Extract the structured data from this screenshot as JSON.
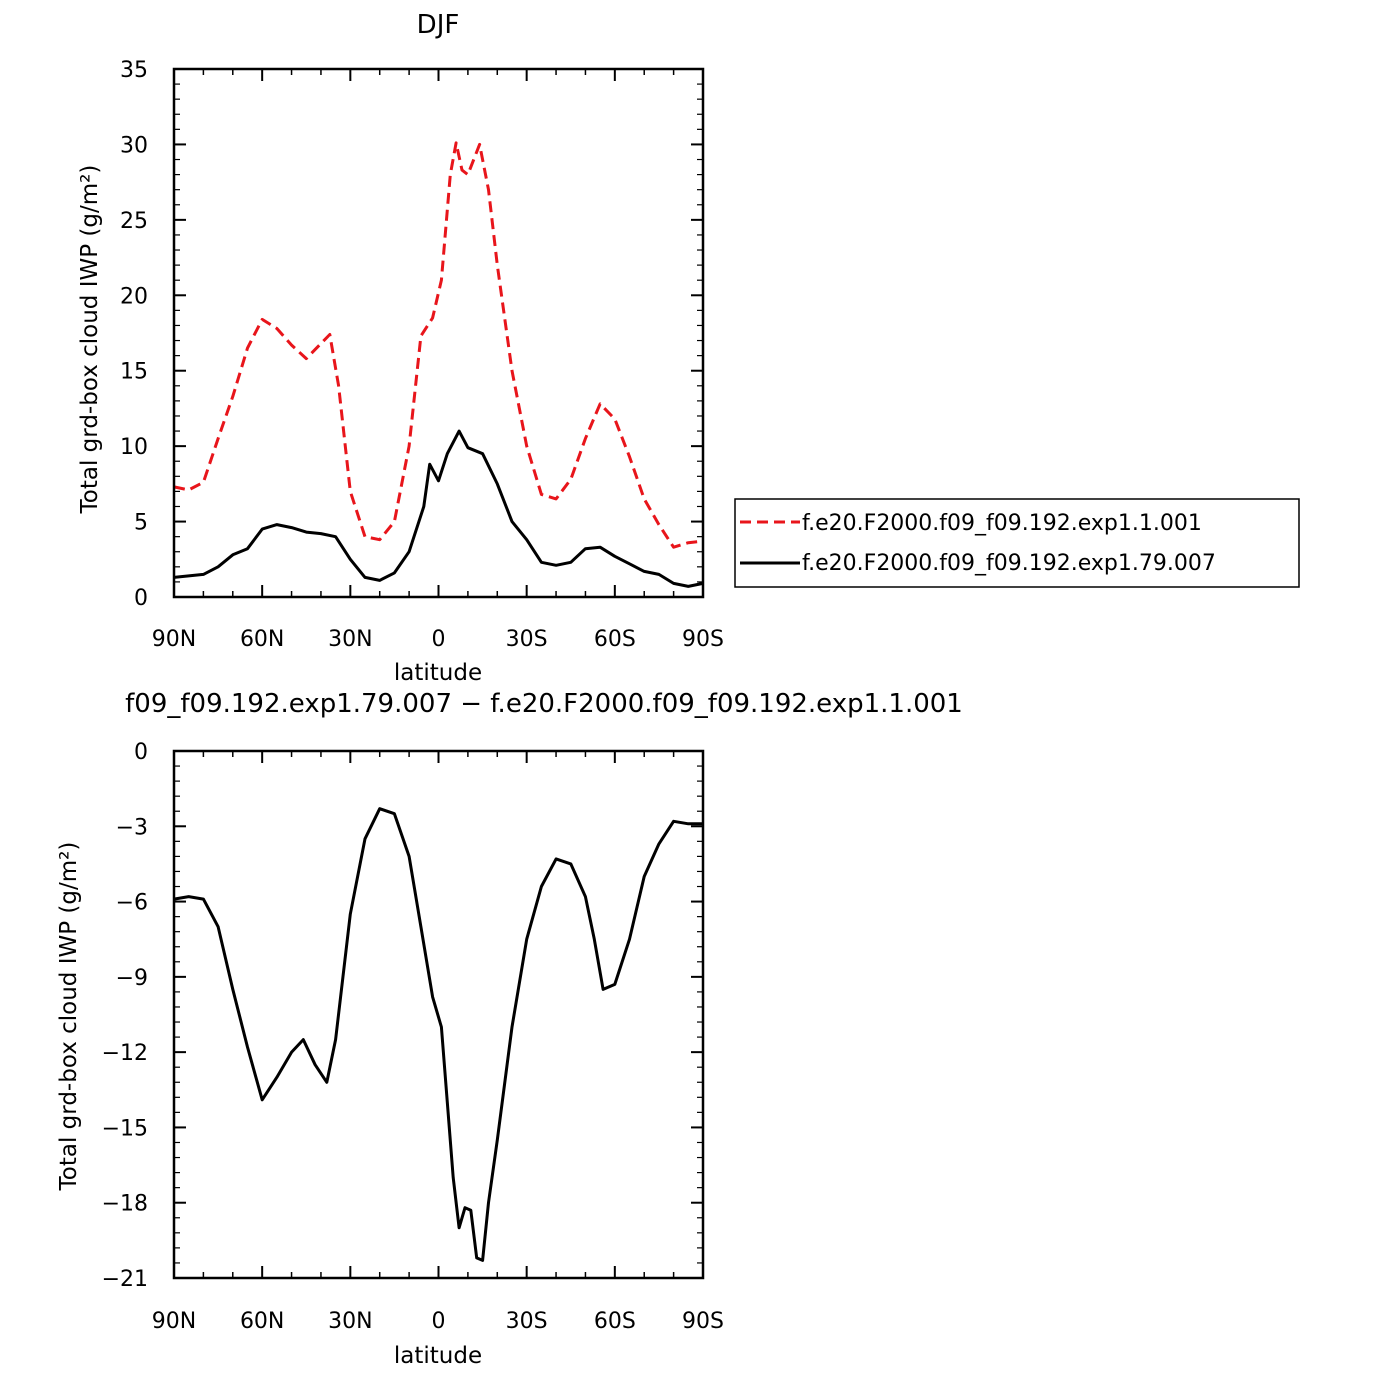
{
  "chart_data": [
    {
      "type": "line",
      "title": "DJF",
      "xlabel": "latitude",
      "ylabel": "Total grd-box cloud IWP (g/m²)",
      "xlim": [
        -90,
        90
      ],
      "ylim": [
        0,
        35
      ],
      "x_ticks": [
        {
          "value": -90,
          "label": "90N"
        },
        {
          "value": -60,
          "label": "60N"
        },
        {
          "value": -30,
          "label": "30N"
        },
        {
          "value": 0,
          "label": "0"
        },
        {
          "value": 30,
          "label": "30S"
        },
        {
          "value": 60,
          "label": "60S"
        },
        {
          "value": 90,
          "label": "90S"
        }
      ],
      "y_ticks": [
        0,
        5,
        10,
        15,
        20,
        25,
        30,
        35
      ],
      "legend_position": "right",
      "series": [
        {
          "name": "f.e20.F2000.f09_f09.192.exp1.1.001",
          "color": "#e8151b",
          "dash": "dashed",
          "points": [
            [
              -90,
              7.3
            ],
            [
              -85,
              7.1
            ],
            [
              -80,
              7.6
            ],
            [
              -75,
              10.5
            ],
            [
              -70,
              13.3
            ],
            [
              -65,
              16.5
            ],
            [
              -60,
              18.4
            ],
            [
              -55,
              17.8
            ],
            [
              -50,
              16.7
            ],
            [
              -45,
              15.8
            ],
            [
              -40,
              16.8
            ],
            [
              -37,
              17.4
            ],
            [
              -34,
              14.0
            ],
            [
              -30,
              7.0
            ],
            [
              -25,
              4.0
            ],
            [
              -20,
              3.8
            ],
            [
              -15,
              5.0
            ],
            [
              -10,
              10.0
            ],
            [
              -6,
              17.3
            ],
            [
              -2,
              18.5
            ],
            [
              1,
              21.0
            ],
            [
              4,
              28.0
            ],
            [
              6,
              30.1
            ],
            [
              8,
              28.3
            ],
            [
              10,
              28.0
            ],
            [
              14,
              30.0
            ],
            [
              17,
              27.0
            ],
            [
              20,
              22.0
            ],
            [
              25,
              15.0
            ],
            [
              30,
              10.0
            ],
            [
              35,
              6.8
            ],
            [
              40,
              6.5
            ],
            [
              45,
              7.8
            ],
            [
              50,
              10.5
            ],
            [
              55,
              12.8
            ],
            [
              60,
              11.8
            ],
            [
              65,
              9.3
            ],
            [
              70,
              6.5
            ],
            [
              75,
              4.8
            ],
            [
              80,
              3.3
            ],
            [
              85,
              3.6
            ],
            [
              90,
              3.7
            ]
          ]
        },
        {
          "name": "f.e20.F2000.f09_f09.192.exp1.79.007",
          "color": "#000000",
          "dash": "solid",
          "points": [
            [
              -90,
              1.3
            ],
            [
              -85,
              1.4
            ],
            [
              -80,
              1.5
            ],
            [
              -75,
              2.0
            ],
            [
              -70,
              2.8
            ],
            [
              -65,
              3.2
            ],
            [
              -60,
              4.5
            ],
            [
              -55,
              4.8
            ],
            [
              -50,
              4.6
            ],
            [
              -45,
              4.3
            ],
            [
              -40,
              4.2
            ],
            [
              -35,
              4.0
            ],
            [
              -30,
              2.5
            ],
            [
              -25,
              1.3
            ],
            [
              -20,
              1.1
            ],
            [
              -15,
              1.6
            ],
            [
              -10,
              3.0
            ],
            [
              -5,
              6.0
            ],
            [
              -3,
              8.8
            ],
            [
              0,
              7.7
            ],
            [
              3,
              9.5
            ],
            [
              7,
              11.0
            ],
            [
              10,
              9.9
            ],
            [
              15,
              9.5
            ],
            [
              20,
              7.5
            ],
            [
              25,
              5.0
            ],
            [
              30,
              3.8
            ],
            [
              35,
              2.3
            ],
            [
              40,
              2.1
            ],
            [
              45,
              2.3
            ],
            [
              50,
              3.2
            ],
            [
              55,
              3.3
            ],
            [
              60,
              2.7
            ],
            [
              65,
              2.2
            ],
            [
              70,
              1.7
            ],
            [
              75,
              1.5
            ],
            [
              80,
              0.9
            ],
            [
              85,
              0.7
            ],
            [
              90,
              0.9
            ]
          ]
        }
      ]
    },
    {
      "type": "line",
      "title": "f09_f09.192.exp1.79.007 − f.e20.F2000.f09_f09.192.exp1.1.001",
      "xlabel": "latitude",
      "ylabel": "Total grd-box cloud IWP (g/m²)",
      "xlim": [
        -90,
        90
      ],
      "ylim": [
        -21,
        0
      ],
      "x_ticks": [
        {
          "value": -90,
          "label": "90N"
        },
        {
          "value": -60,
          "label": "60N"
        },
        {
          "value": -30,
          "label": "30N"
        },
        {
          "value": 0,
          "label": "0"
        },
        {
          "value": 30,
          "label": "30S"
        },
        {
          "value": 60,
          "label": "60S"
        },
        {
          "value": 90,
          "label": "90S"
        }
      ],
      "y_ticks": [
        0,
        -3,
        -6,
        -9,
        -12,
        -15,
        -18,
        -21
      ],
      "series": [
        {
          "color": "#000000",
          "dash": "solid",
          "points": [
            [
              -90,
              -5.9
            ],
            [
              -85,
              -5.8
            ],
            [
              -80,
              -5.9
            ],
            [
              -75,
              -7.0
            ],
            [
              -70,
              -9.5
            ],
            [
              -65,
              -11.8
            ],
            [
              -60,
              -13.9
            ],
            [
              -55,
              -13.0
            ],
            [
              -50,
              -12.0
            ],
            [
              -46,
              -11.5
            ],
            [
              -42,
              -12.5
            ],
            [
              -38,
              -13.2
            ],
            [
              -35,
              -11.5
            ],
            [
              -30,
              -6.5
            ],
            [
              -25,
              -3.5
            ],
            [
              -20,
              -2.3
            ],
            [
              -15,
              -2.5
            ],
            [
              -10,
              -4.2
            ],
            [
              -6,
              -7.0
            ],
            [
              -2,
              -9.8
            ],
            [
              1,
              -11.0
            ],
            [
              3,
              -14.0
            ],
            [
              5,
              -17.0
            ],
            [
              7,
              -19.0
            ],
            [
              9,
              -18.2
            ],
            [
              11,
              -18.3
            ],
            [
              13,
              -20.2
            ],
            [
              15,
              -20.3
            ],
            [
              17,
              -18.0
            ],
            [
              20,
              -15.5
            ],
            [
              25,
              -11.0
            ],
            [
              30,
              -7.5
            ],
            [
              35,
              -5.4
            ],
            [
              40,
              -4.3
            ],
            [
              45,
              -4.5
            ],
            [
              50,
              -5.8
            ],
            [
              53,
              -7.5
            ],
            [
              56,
              -9.5
            ],
            [
              60,
              -9.3
            ],
            [
              65,
              -7.5
            ],
            [
              70,
              -5.0
            ],
            [
              75,
              -3.7
            ],
            [
              80,
              -2.8
            ],
            [
              85,
              -2.9
            ],
            [
              90,
              -2.9
            ]
          ]
        }
      ]
    }
  ]
}
